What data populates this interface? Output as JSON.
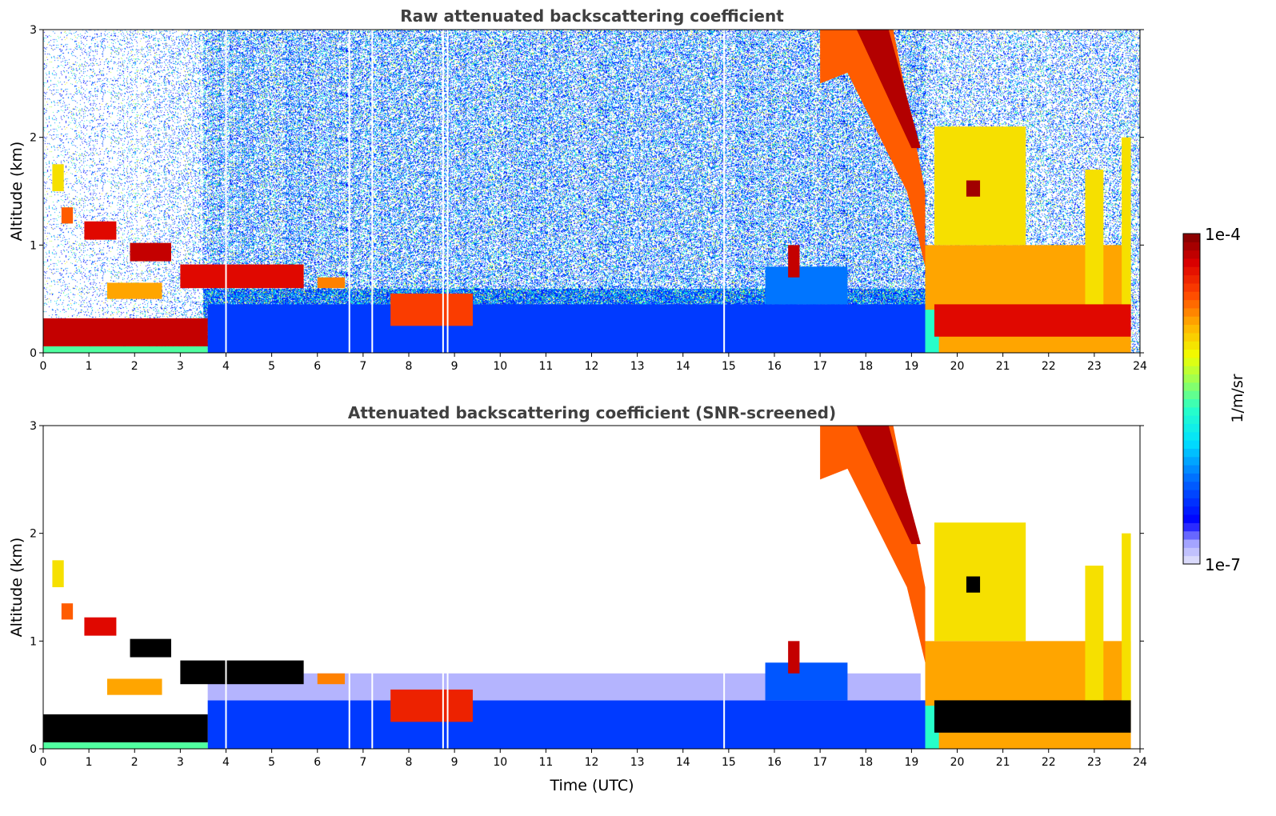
{
  "chart_data": [
    {
      "type": "heatmap",
      "title": "Raw attenuated backscattering coefficient",
      "xlabel": "",
      "ylabel": "Altitude (km)",
      "xlim": [
        0,
        24
      ],
      "ylim": [
        0,
        3
      ],
      "xticks": [
        "0",
        "1",
        "2",
        "3",
        "4",
        "5",
        "6",
        "7",
        "8",
        "9",
        "10",
        "11",
        "12",
        "13",
        "14",
        "15",
        "16",
        "17",
        "18",
        "19",
        "20",
        "21",
        "22",
        "23",
        "24"
      ],
      "yticks": [
        "0",
        "1",
        "2",
        "3"
      ],
      "noise": true
    },
    {
      "type": "heatmap",
      "title": "Attenuated backscattering coefficient (SNR-screened)",
      "xlabel": "Time (UTC)",
      "ylabel": "Altitude (km)",
      "xlim": [
        0,
        24
      ],
      "ylim": [
        0,
        3
      ],
      "xticks": [
        "0",
        "1",
        "2",
        "3",
        "4",
        "5",
        "6",
        "7",
        "8",
        "9",
        "10",
        "11",
        "12",
        "13",
        "14",
        "15",
        "16",
        "17",
        "18",
        "19",
        "20",
        "21",
        "22",
        "23",
        "24"
      ],
      "yticks": [
        "0",
        "1",
        "2",
        "3"
      ],
      "noise": false
    }
  ],
  "features_note_units": "time in hours UTC, altitude in km, value as log10(1/m/sr); v = [top panel, bottom panel]",
  "features": [
    {
      "name": "boundary-layer",
      "t": [
        3.6,
        19.3
      ],
      "z": [
        0,
        0.45
      ],
      "v": [
        -6.4,
        -6.4
      ]
    },
    {
      "name": "boundary-layer-top",
      "t": [
        3.6,
        19.2
      ],
      "z": [
        0.45,
        0.7
      ],
      "v": [
        null,
        -6.85
      ]
    },
    {
      "name": "boundary-layer-bump",
      "t": [
        15.8,
        17.6
      ],
      "z": [
        0.45,
        0.8
      ],
      "v": [
        -6.2,
        -6.3
      ]
    },
    {
      "name": "surface-layer",
      "t": [
        0,
        3.6
      ],
      "z": [
        0,
        0.06
      ],
      "v": [
        -5.5,
        -5.5
      ]
    },
    {
      "name": "near-surface-aerosol",
      "t": [
        0,
        3.6
      ],
      "z": [
        0.06,
        0.32
      ],
      "v": [
        -4.2,
        -3.8
      ]
    },
    {
      "name": "elevated-aerosol",
      "t": [
        3.0,
        5.7
      ],
      "z": [
        0.6,
        0.82
      ],
      "v": [
        -4.3,
        -3.8
      ]
    },
    {
      "name": "layer-a",
      "t": [
        0.2,
        0.45
      ],
      "z": [
        1.5,
        1.75
      ],
      "v": [
        -5.0,
        -5.0
      ]
    },
    {
      "name": "layer-b",
      "t": [
        0.4,
        0.65
      ],
      "z": [
        1.2,
        1.35
      ],
      "v": [
        -4.6,
        -4.6
      ]
    },
    {
      "name": "layer-c",
      "t": [
        0.9,
        1.6
      ],
      "z": [
        1.05,
        1.22
      ],
      "v": [
        -4.3,
        -4.3
      ]
    },
    {
      "name": "layer-d",
      "t": [
        1.9,
        2.8
      ],
      "z": [
        0.85,
        1.02
      ],
      "v": [
        -4.2,
        -3.8
      ]
    },
    {
      "name": "layer-e",
      "t": [
        1.4,
        2.6
      ],
      "z": [
        0.5,
        0.65
      ],
      "v": [
        -4.8,
        -4.8
      ]
    },
    {
      "name": "layer-f",
      "t": [
        6.0,
        6.6
      ],
      "z": [
        0.6,
        0.7
      ],
      "v": [
        -4.7,
        -4.7
      ]
    },
    {
      "name": "aerosol-8h",
      "t": [
        7.6,
        9.4
      ],
      "z": [
        0.25,
        0.55
      ],
      "v": [
        -4.5,
        -4.4
      ]
    },
    {
      "name": "plume-16h",
      "t": [
        16.3,
        16.55
      ],
      "z": [
        0.7,
        1.0
      ],
      "v": [
        -4.2,
        -4.2
      ]
    },
    {
      "name": "precip-columns",
      "t": [
        19.3,
        23.8
      ],
      "z": [
        0,
        1.0
      ],
      "v": [
        -4.8,
        -4.8
      ]
    },
    {
      "name": "cloud-columns-a",
      "t": [
        19.5,
        21.5
      ],
      "z": [
        1.0,
        2.1
      ],
      "v": [
        -5.0,
        -5.0
      ]
    },
    {
      "name": "cloud-columns-b",
      "t": [
        22.8,
        23.2
      ],
      "z": [
        0.4,
        1.7
      ],
      "v": [
        -5.0,
        -5.0
      ]
    },
    {
      "name": "cloud-columns-c",
      "t": [
        23.6,
        23.8
      ],
      "z": [
        0.4,
        2.0
      ],
      "v": [
        -5.0,
        -5.0
      ]
    },
    {
      "name": "cloud-base-19h",
      "t": [
        19.3,
        19.6
      ],
      "z": [
        0,
        0.4
      ],
      "v": [
        -5.6,
        -5.6
      ]
    },
    {
      "name": "cloud-core-20h",
      "t": [
        20.2,
        20.5
      ],
      "z": [
        1.45,
        1.6
      ],
      "v": [
        -4.1,
        -3.8
      ]
    },
    {
      "name": "low-layer-evening",
      "t": [
        19.5,
        23.8
      ],
      "z": [
        0.15,
        0.45
      ],
      "v": [
        -4.3,
        -3.9
      ]
    },
    {
      "name": "falling-cloud",
      "poly": [
        [
          17,
          3
        ],
        [
          18.6,
          3
        ],
        [
          19.3,
          1.5
        ],
        [
          19.3,
          0.8
        ],
        [
          18.9,
          1.5
        ],
        [
          17.6,
          2.6
        ],
        [
          17,
          2.5
        ]
      ],
      "v": [
        -4.6,
        -4.6
      ]
    },
    {
      "name": "falling-cloud-core",
      "poly": [
        [
          17.8,
          3
        ],
        [
          18.5,
          3
        ],
        [
          19.2,
          1.9
        ],
        [
          19.0,
          1.9
        ]
      ],
      "v": [
        -4.15,
        -4.15
      ]
    }
  ],
  "gaps_hours": [
    4.0,
    6.7,
    7.2,
    8.75,
    8.85,
    14.9
  ],
  "colorbar": {
    "label": "1/m/sr",
    "max_label": "1e-4",
    "min_label": "1e-7",
    "log_min": -7,
    "log_max": -4,
    "levels": 40
  }
}
